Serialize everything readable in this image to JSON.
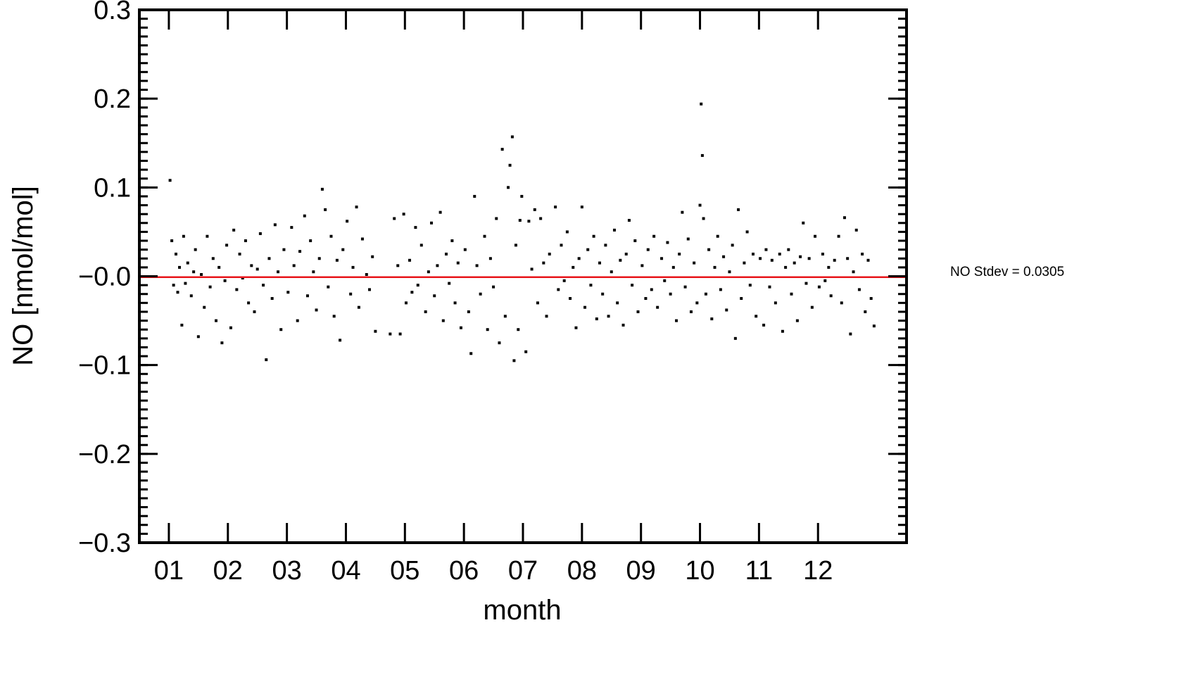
{
  "chart_data": {
    "type": "scatter",
    "xlabel": "month",
    "ylabel": "NO [nmol/mol]",
    "xlim": [
      0.5,
      13.5
    ],
    "ylim": [
      -0.3,
      0.3
    ],
    "x_ticks": [
      {
        "value": 1,
        "label": "01"
      },
      {
        "value": 2,
        "label": "02"
      },
      {
        "value": 3,
        "label": "03"
      },
      {
        "value": 4,
        "label": "04"
      },
      {
        "value": 5,
        "label": "05"
      },
      {
        "value": 6,
        "label": "06"
      },
      {
        "value": 7,
        "label": "07"
      },
      {
        "value": 8,
        "label": "08"
      },
      {
        "value": 9,
        "label": "09"
      },
      {
        "value": 10,
        "label": "10"
      },
      {
        "value": 11,
        "label": "11"
      },
      {
        "value": 12,
        "label": "12"
      }
    ],
    "y_ticks": [
      {
        "value": 0.3,
        "label": "0.3"
      },
      {
        "value": 0.2,
        "label": "0.2"
      },
      {
        "value": 0.1,
        "label": "0.1"
      },
      {
        "value": 0.0,
        "label": "−0.0"
      },
      {
        "value": -0.1,
        "label": "−0.1"
      },
      {
        "value": -0.2,
        "label": "−0.2"
      },
      {
        "value": -0.3,
        "label": "−0.3"
      }
    ],
    "annotation": "NO Stdev = 0.0305",
    "mean_line": {
      "y": -0.001,
      "color": "#e8141a"
    },
    "point_color": "#000000",
    "grid": false,
    "points": [
      [
        1.02,
        0.108
      ],
      [
        1.05,
        0.04
      ],
      [
        1.08,
        -0.01
      ],
      [
        1.12,
        0.025
      ],
      [
        1.15,
        -0.018
      ],
      [
        1.18,
        0.01
      ],
      [
        1.22,
        -0.055
      ],
      [
        1.25,
        0.045
      ],
      [
        1.28,
        -0.008
      ],
      [
        1.32,
        0.015
      ],
      [
        1.38,
        -0.022
      ],
      [
        1.42,
        0.005
      ],
      [
        1.45,
        0.03
      ],
      [
        1.5,
        -0.068
      ],
      [
        1.55,
        0.002
      ],
      [
        1.6,
        -0.035
      ],
      [
        1.65,
        0.045
      ],
      [
        1.7,
        -0.012
      ],
      [
        1.75,
        0.02
      ],
      [
        1.8,
        -0.05
      ],
      [
        1.85,
        0.01
      ],
      [
        1.9,
        -0.075
      ],
      [
        1.95,
        -0.005
      ],
      [
        1.98,
        0.035
      ],
      [
        2.05,
        -0.058
      ],
      [
        2.1,
        0.052
      ],
      [
        2.15,
        -0.015
      ],
      [
        2.2,
        0.025
      ],
      [
        2.25,
        -0.002
      ],
      [
        2.3,
        0.04
      ],
      [
        2.35,
        -0.03
      ],
      [
        2.4,
        0.012
      ],
      [
        2.45,
        -0.04
      ],
      [
        2.5,
        0.008
      ],
      [
        2.55,
        0.048
      ],
      [
        2.6,
        -0.01
      ],
      [
        2.65,
        -0.094
      ],
      [
        2.7,
        0.02
      ],
      [
        2.75,
        -0.025
      ],
      [
        2.8,
        0.058
      ],
      [
        2.85,
        0.005
      ],
      [
        2.9,
        -0.06
      ],
      [
        2.95,
        0.03
      ],
      [
        3.02,
        -0.018
      ],
      [
        3.08,
        0.055
      ],
      [
        3.12,
        0.012
      ],
      [
        3.18,
        -0.05
      ],
      [
        3.22,
        0.028
      ],
      [
        3.3,
        0.068
      ],
      [
        3.35,
        -0.022
      ],
      [
        3.4,
        0.04
      ],
      [
        3.45,
        0.005
      ],
      [
        3.5,
        -0.038
      ],
      [
        3.55,
        0.02
      ],
      [
        3.6,
        0.098
      ],
      [
        3.65,
        0.075
      ],
      [
        3.7,
        -0.012
      ],
      [
        3.75,
        0.045
      ],
      [
        3.8,
        -0.045
      ],
      [
        3.85,
        0.018
      ],
      [
        3.9,
        -0.072
      ],
      [
        3.95,
        0.03
      ],
      [
        4.02,
        0.062
      ],
      [
        4.08,
        -0.02
      ],
      [
        4.12,
        0.01
      ],
      [
        4.18,
        0.078
      ],
      [
        4.22,
        -0.035
      ],
      [
        4.28,
        0.042
      ],
      [
        4.35,
        0.002
      ],
      [
        4.4,
        -0.015
      ],
      [
        4.45,
        0.022
      ],
      [
        4.5,
        -0.062
      ],
      [
        4.75,
        -0.065
      ],
      [
        4.82,
        0.065
      ],
      [
        4.88,
        0.012
      ],
      [
        4.92,
        -0.065
      ],
      [
        4.98,
        0.07
      ],
      [
        5.02,
        -0.03
      ],
      [
        5.08,
        0.018
      ],
      [
        5.12,
        -0.018
      ],
      [
        5.18,
        0.055
      ],
      [
        5.22,
        -0.01
      ],
      [
        5.28,
        0.035
      ],
      [
        5.35,
        -0.04
      ],
      [
        5.4,
        0.005
      ],
      [
        5.45,
        0.06
      ],
      [
        5.5,
        -0.022
      ],
      [
        5.55,
        0.012
      ],
      [
        5.6,
        0.072
      ],
      [
        5.65,
        -0.05
      ],
      [
        5.7,
        0.025
      ],
      [
        5.75,
        -0.008
      ],
      [
        5.8,
        0.04
      ],
      [
        5.85,
        -0.03
      ],
      [
        5.9,
        0.015
      ],
      [
        5.95,
        -0.058
      ],
      [
        6.02,
        0.03
      ],
      [
        6.08,
        -0.04
      ],
      [
        6.12,
        -0.087
      ],
      [
        6.18,
        0.09
      ],
      [
        6.22,
        0.012
      ],
      [
        6.28,
        -0.02
      ],
      [
        6.35,
        0.045
      ],
      [
        6.4,
        -0.06
      ],
      [
        6.45,
        0.02
      ],
      [
        6.5,
        -0.012
      ],
      [
        6.55,
        0.065
      ],
      [
        6.6,
        -0.075
      ],
      [
        6.65,
        0.143
      ],
      [
        6.7,
        -0.045
      ],
      [
        6.75,
        0.1
      ],
      [
        6.78,
        0.125
      ],
      [
        6.82,
        0.157
      ],
      [
        6.85,
        -0.095
      ],
      [
        6.88,
        0.035
      ],
      [
        6.92,
        -0.06
      ],
      [
        6.95,
        0.063
      ],
      [
        6.98,
        0.09
      ],
      [
        7.05,
        -0.085
      ],
      [
        7.1,
        0.062
      ],
      [
        7.15,
        0.008
      ],
      [
        7.2,
        0.075
      ],
      [
        7.25,
        -0.03
      ],
      [
        7.3,
        0.065
      ],
      [
        7.35,
        0.015
      ],
      [
        7.4,
        -0.045
      ],
      [
        7.45,
        0.025
      ],
      [
        7.55,
        0.078
      ],
      [
        7.6,
        -0.015
      ],
      [
        7.65,
        0.035
      ],
      [
        7.7,
        -0.005
      ],
      [
        7.75,
        0.05
      ],
      [
        7.8,
        -0.025
      ],
      [
        7.85,
        0.01
      ],
      [
        7.9,
        -0.058
      ],
      [
        7.95,
        0.02
      ],
      [
        8.0,
        0.078
      ],
      [
        8.05,
        -0.035
      ],
      [
        8.1,
        0.03
      ],
      [
        8.15,
        -0.01
      ],
      [
        8.2,
        0.045
      ],
      [
        8.25,
        -0.048
      ],
      [
        8.3,
        0.015
      ],
      [
        8.35,
        -0.02
      ],
      [
        8.4,
        0.035
      ],
      [
        8.45,
        -0.045
      ],
      [
        8.5,
        0.005
      ],
      [
        8.55,
        0.052
      ],
      [
        8.6,
        -0.03
      ],
      [
        8.65,
        0.018
      ],
      [
        8.7,
        -0.055
      ],
      [
        8.75,
        0.025
      ],
      [
        8.8,
        0.063
      ],
      [
        8.85,
        -0.01
      ],
      [
        8.9,
        0.04
      ],
      [
        8.95,
        -0.04
      ],
      [
        9.02,
        0.012
      ],
      [
        9.08,
        -0.025
      ],
      [
        9.12,
        0.03
      ],
      [
        9.18,
        -0.015
      ],
      [
        9.22,
        0.045
      ],
      [
        9.28,
        -0.035
      ],
      [
        9.35,
        0.02
      ],
      [
        9.4,
        -0.005
      ],
      [
        9.45,
        0.038
      ],
      [
        9.5,
        -0.02
      ],
      [
        9.55,
        0.01
      ],
      [
        9.6,
        -0.05
      ],
      [
        9.65,
        0.025
      ],
      [
        9.7,
        0.072
      ],
      [
        9.75,
        -0.012
      ],
      [
        9.8,
        0.042
      ],
      [
        9.85,
        -0.04
      ],
      [
        9.9,
        0.015
      ],
      [
        9.95,
        -0.03
      ],
      [
        10.0,
        0.08
      ],
      [
        10.02,
        0.194
      ],
      [
        10.04,
        0.136
      ],
      [
        10.06,
        0.065
      ],
      [
        10.1,
        -0.02
      ],
      [
        10.15,
        0.03
      ],
      [
        10.2,
        -0.048
      ],
      [
        10.25,
        0.01
      ],
      [
        10.3,
        0.045
      ],
      [
        10.35,
        -0.015
      ],
      [
        10.4,
        0.022
      ],
      [
        10.45,
        -0.038
      ],
      [
        10.5,
        0.005
      ],
      [
        10.55,
        0.035
      ],
      [
        10.6,
        -0.07
      ],
      [
        10.65,
        0.075
      ],
      [
        10.7,
        -0.025
      ],
      [
        10.75,
        0.015
      ],
      [
        10.8,
        0.05
      ],
      [
        10.85,
        -0.01
      ],
      [
        10.9,
        0.025
      ],
      [
        10.95,
        -0.045
      ],
      [
        11.02,
        0.02
      ],
      [
        11.08,
        -0.055
      ],
      [
        11.12,
        0.03
      ],
      [
        11.18,
        -0.012
      ],
      [
        11.22,
        0.018
      ],
      [
        11.28,
        -0.03
      ],
      [
        11.35,
        0.025
      ],
      [
        11.4,
        -0.062
      ],
      [
        11.45,
        0.01
      ],
      [
        11.5,
        0.03
      ],
      [
        11.55,
        -0.02
      ],
      [
        11.6,
        0.015
      ],
      [
        11.65,
        -0.05
      ],
      [
        11.7,
        0.022
      ],
      [
        11.75,
        0.06
      ],
      [
        11.8,
        -0.008
      ],
      [
        11.85,
        0.02
      ],
      [
        11.9,
        -0.035
      ],
      [
        11.95,
        0.045
      ],
      [
        12.02,
        -0.012
      ],
      [
        12.08,
        0.025
      ],
      [
        12.12,
        -0.005
      ],
      [
        12.18,
        0.01
      ],
      [
        12.22,
        -0.022
      ],
      [
        12.28,
        0.018
      ],
      [
        12.35,
        0.045
      ],
      [
        12.4,
        -0.03
      ],
      [
        12.45,
        0.066
      ],
      [
        12.5,
        0.02
      ],
      [
        12.55,
        -0.065
      ],
      [
        12.6,
        0.005
      ],
      [
        12.65,
        0.052
      ],
      [
        12.7,
        -0.015
      ],
      [
        12.75,
        0.025
      ],
      [
        12.8,
        -0.04
      ],
      [
        12.85,
        0.018
      ],
      [
        12.9,
        -0.025
      ],
      [
        12.95,
        -0.056
      ]
    ]
  }
}
